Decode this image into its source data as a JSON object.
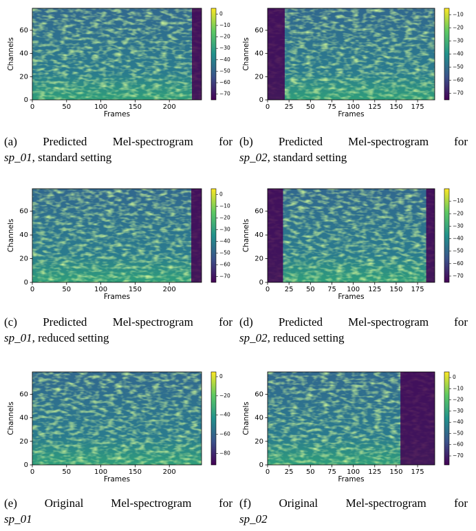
{
  "figures": [
    {
      "label": "(a)",
      "caption": "Predicted Mel-spectrogram for",
      "name": "sp_01",
      "setting": ", standard setting",
      "x_label": "Frames",
      "y_label": "Channels",
      "xlim": [
        0,
        247
      ],
      "ylim": [
        0,
        79
      ],
      "xticks": [
        0,
        50,
        100,
        150,
        200
      ],
      "yticks": [
        0,
        20,
        40,
        60
      ],
      "colorbar_lim": [
        -75,
        5
      ],
      "colorbar_ticks": [
        {
          "value": 0,
          "label": "0"
        },
        {
          "value": -10,
          "label": "−10"
        },
        {
          "value": -20,
          "label": "−20"
        },
        {
          "value": -30,
          "label": "−30"
        },
        {
          "value": -40,
          "label": "−40"
        },
        {
          "value": -50,
          "label": "−50"
        },
        {
          "value": -60,
          "label": "−60"
        },
        {
          "value": -70,
          "label": "−70"
        }
      ]
    },
    {
      "label": "(b)",
      "caption": "Predicted Mel-spectrogram for",
      "name": "sp_02",
      "setting": ", standard setting",
      "x_label": "Frames",
      "y_label": "Channels",
      "xlim": [
        0,
        195
      ],
      "ylim": [
        0,
        79
      ],
      "xticks": [
        0,
        25,
        50,
        75,
        100,
        125,
        150,
        175
      ],
      "yticks": [
        0,
        20,
        40,
        60
      ],
      "colorbar_lim": [
        -75,
        -5
      ],
      "colorbar_ticks": [
        {
          "value": -10,
          "label": "−10"
        },
        {
          "value": -20,
          "label": "−20"
        },
        {
          "value": -30,
          "label": "−30"
        },
        {
          "value": -40,
          "label": "−40"
        },
        {
          "value": -50,
          "label": "−50"
        },
        {
          "value": -60,
          "label": "−60"
        },
        {
          "value": -70,
          "label": "−70"
        }
      ]
    },
    {
      "label": "(c)",
      "caption": "Predicted Mel-spectrogram for",
      "name": "sp_01",
      "setting": ", reduced setting",
      "x_label": "Frames",
      "y_label": "Channels",
      "xlim": [
        0,
        247
      ],
      "ylim": [
        0,
        79
      ],
      "xticks": [
        0,
        50,
        100,
        150,
        200
      ],
      "yticks": [
        0,
        20,
        40,
        60
      ],
      "colorbar_lim": [
        -75,
        5
      ],
      "colorbar_ticks": [
        {
          "value": 0,
          "label": "0"
        },
        {
          "value": -10,
          "label": "−10"
        },
        {
          "value": -20,
          "label": "−20"
        },
        {
          "value": -30,
          "label": "−30"
        },
        {
          "value": -40,
          "label": "−40"
        },
        {
          "value": -50,
          "label": "−50"
        },
        {
          "value": -60,
          "label": "−60"
        },
        {
          "value": -70,
          "label": "−70"
        }
      ]
    },
    {
      "label": "(d)",
      "caption": "Predicted Mel-spectrogram for",
      "name": "sp_02",
      "setting": ", reduced setting",
      "x_label": "Frames",
      "y_label": "Channels",
      "xlim": [
        0,
        195
      ],
      "ylim": [
        0,
        79
      ],
      "xticks": [
        0,
        25,
        50,
        75,
        100,
        125,
        150,
        175
      ],
      "yticks": [
        0,
        20,
        40,
        60
      ],
      "colorbar_lim": [
        -75,
        0
      ],
      "colorbar_ticks": [
        {
          "value": -10,
          "label": "−10"
        },
        {
          "value": -20,
          "label": "−20"
        },
        {
          "value": -30,
          "label": "−30"
        },
        {
          "value": -40,
          "label": "−40"
        },
        {
          "value": -50,
          "label": "−50"
        },
        {
          "value": -60,
          "label": "−60"
        },
        {
          "value": -70,
          "label": "−70"
        }
      ]
    },
    {
      "label": "(e)",
      "caption": "Original Mel-spectrogram for",
      "name": "sp_01",
      "x_label": "Frames",
      "y_label": "Channels",
      "xlim": [
        0,
        247
      ],
      "ylim": [
        0,
        79
      ],
      "xticks": [
        0,
        50,
        100,
        150,
        200
      ],
      "yticks": [
        0,
        20,
        40,
        60
      ],
      "colorbar_lim": [
        -92,
        5
      ],
      "colorbar_ticks": [
        {
          "value": 0,
          "label": "0"
        },
        {
          "value": -20,
          "label": "−20"
        },
        {
          "value": -40,
          "label": "−40"
        },
        {
          "value": -60,
          "label": "−60"
        },
        {
          "value": -80,
          "label": "−80"
        }
      ]
    },
    {
      "label": "(f)",
      "caption": "Original Mel-spectrogram for",
      "name": "sp_02",
      "x_label": "Frames",
      "y_label": "Channels",
      "xlim": [
        0,
        195
      ],
      "ylim": [
        0,
        79
      ],
      "xticks": [
        0,
        25,
        50,
        75,
        100,
        125,
        150,
        175
      ],
      "yticks": [
        0,
        20,
        40,
        60
      ],
      "colorbar_lim": [
        -78,
        5
      ],
      "colorbar_ticks": [
        {
          "value": 0,
          "label": "0"
        },
        {
          "value": -10,
          "label": "−10"
        },
        {
          "value": -20,
          "label": "−20"
        },
        {
          "value": -30,
          "label": "−30"
        },
        {
          "value": -40,
          "label": "−40"
        },
        {
          "value": -50,
          "label": "−50"
        },
        {
          "value": -60,
          "label": "−60"
        },
        {
          "value": -70,
          "label": "−70"
        }
      ]
    }
  ]
}
